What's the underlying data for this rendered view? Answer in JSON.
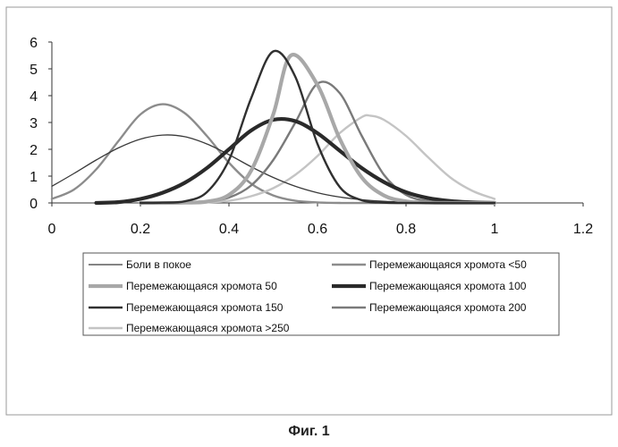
{
  "caption": "Фиг. 1",
  "chart_data": {
    "type": "line",
    "x_ticks": [
      "0",
      "0.2",
      "0.4",
      "0.6",
      "0.8",
      "1",
      "1.2"
    ],
    "y_ticks": [
      "0",
      "1",
      "2",
      "3",
      "4",
      "5",
      "6"
    ],
    "xlim": [
      0,
      1.2
    ],
    "ylim": [
      0,
      6
    ],
    "grid": false,
    "legend_position": "bottom",
    "series": [
      {
        "name": "Боли в покое",
        "color": "#3a3a3a",
        "width": 1.3,
        "x": [
          0,
          0.05,
          0.1,
          0.15,
          0.2,
          0.25,
          0.3,
          0.35,
          0.4,
          0.45,
          0.5,
          0.55,
          0.6,
          0.65,
          0.7,
          0.75,
          0.8,
          0.85,
          0.9,
          0.95,
          1.0
        ],
        "y": [
          0.62,
          1.1,
          1.6,
          2.05,
          2.38,
          2.53,
          2.47,
          2.2,
          1.8,
          1.35,
          0.95,
          0.62,
          0.38,
          0.22,
          0.12,
          0.06,
          0.03,
          0.01,
          0.0,
          0.0,
          0.0
        ]
      },
      {
        "name": "Перемежающаяся хромота <50",
        "color": "#8c8c8c",
        "width": 2.4,
        "x": [
          0,
          0.05,
          0.1,
          0.15,
          0.2,
          0.25,
          0.3,
          0.35,
          0.4,
          0.45,
          0.5,
          0.55,
          0.6,
          0.65,
          0.7,
          0.75,
          0.8,
          0.85,
          0.9,
          0.95,
          1.0
        ],
        "y": [
          0.15,
          0.5,
          1.25,
          2.3,
          3.3,
          3.68,
          3.35,
          2.5,
          1.5,
          0.72,
          0.28,
          0.08,
          0.02,
          0.0,
          0.0,
          0.0,
          0.0,
          0.0,
          0.0,
          0.0,
          0.0
        ]
      },
      {
        "name": "Перемежающаяся хромота 50",
        "color": "#a8a8a8",
        "width": 4.2,
        "x": [
          0.2,
          0.25,
          0.3,
          0.35,
          0.4,
          0.45,
          0.5,
          0.54,
          0.6,
          0.65,
          0.7,
          0.75,
          0.8,
          0.85,
          0.9,
          0.95,
          1.0
        ],
        "y": [
          0.0,
          0.0,
          0.01,
          0.05,
          0.3,
          1.2,
          3.3,
          5.5,
          4.4,
          2.4,
          0.95,
          0.28,
          0.06,
          0.01,
          0.0,
          0.0,
          0.0
        ]
      },
      {
        "name": "Перемежающаяся хромота 100",
        "color": "#2a2a2a",
        "width": 4.2,
        "x": [
          0.1,
          0.15,
          0.2,
          0.25,
          0.3,
          0.35,
          0.4,
          0.45,
          0.5,
          0.55,
          0.6,
          0.65,
          0.7,
          0.75,
          0.8,
          0.85,
          0.9,
          0.95,
          1.0
        ],
        "y": [
          0.0,
          0.03,
          0.15,
          0.38,
          0.75,
          1.3,
          2.0,
          2.7,
          3.1,
          3.05,
          2.6,
          1.95,
          1.3,
          0.78,
          0.4,
          0.18,
          0.07,
          0.02,
          0.0
        ]
      },
      {
        "name": "Перемежающаяся хромота 150",
        "color": "#303030",
        "width": 2.4,
        "x": [
          0.2,
          0.25,
          0.3,
          0.35,
          0.4,
          0.45,
          0.5,
          0.55,
          0.6,
          0.65,
          0.7,
          0.75,
          0.8,
          0.85,
          0.9,
          0.95,
          1.0
        ],
        "y": [
          0.0,
          0.01,
          0.06,
          0.4,
          1.6,
          3.9,
          5.65,
          4.7,
          2.2,
          0.6,
          0.1,
          0.01,
          0.0,
          0.0,
          0.0,
          0.0,
          0.0
        ]
      },
      {
        "name": "Перемежающаяся хромота 200",
        "color": "#7a7a7a",
        "width": 2.4,
        "x": [
          0.25,
          0.3,
          0.35,
          0.4,
          0.45,
          0.5,
          0.55,
          0.6,
          0.65,
          0.7,
          0.75,
          0.8,
          0.85,
          0.9,
          0.95,
          1.0
        ],
        "y": [
          0.0,
          0.01,
          0.05,
          0.2,
          0.65,
          1.6,
          3.0,
          4.45,
          4.1,
          2.5,
          1.05,
          0.3,
          0.07,
          0.01,
          0.0,
          0.0
        ]
      },
      {
        "name": "Перемежающаяся хромота >250",
        "color": "#c4c4c4",
        "width": 2.4,
        "x": [
          0.3,
          0.35,
          0.4,
          0.45,
          0.5,
          0.55,
          0.6,
          0.65,
          0.7,
          0.72,
          0.75,
          0.8,
          0.85,
          0.9,
          0.95,
          1.0
        ],
        "y": [
          0.0,
          0.02,
          0.08,
          0.25,
          0.55,
          1.05,
          1.75,
          2.6,
          3.2,
          3.25,
          3.1,
          2.5,
          1.7,
          0.95,
          0.45,
          0.15
        ]
      }
    ]
  }
}
